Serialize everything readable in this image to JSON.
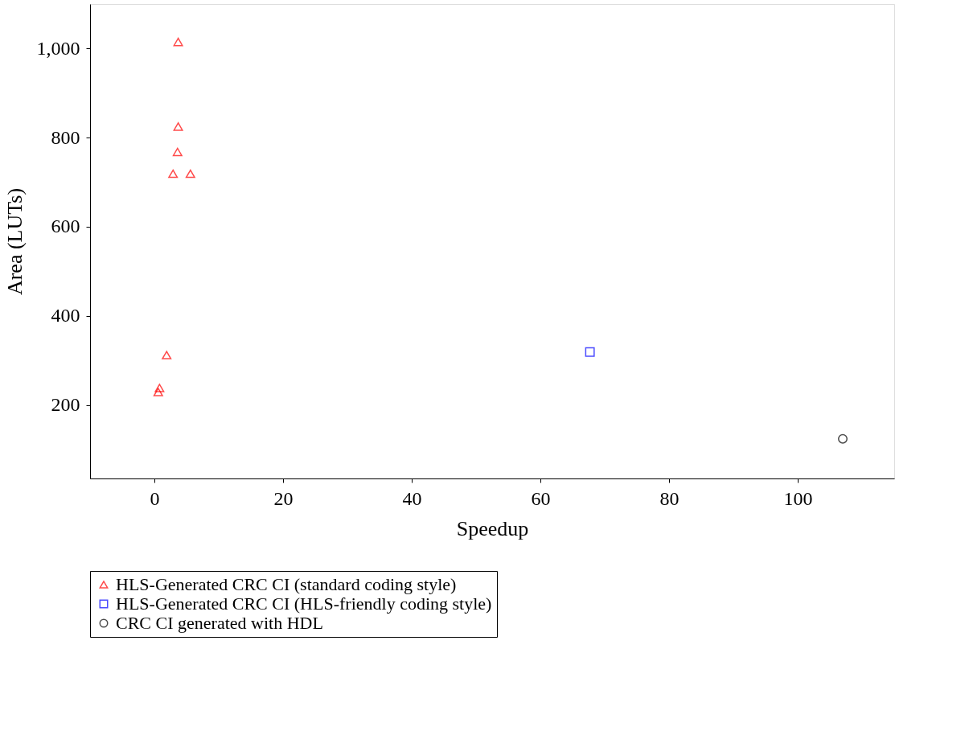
{
  "chart_data": {
    "type": "scatter",
    "xlabel": "Speedup",
    "ylabel": "Area (LUTs)",
    "xlim": [
      -10,
      115
    ],
    "xticks": [
      0,
      20,
      40,
      60,
      80,
      100
    ],
    "ylim": [
      35,
      1100
    ],
    "yticks": [
      {
        "value": 200,
        "label": "200"
      },
      {
        "value": 400,
        "label": "400"
      },
      {
        "value": 600,
        "label": "600"
      },
      {
        "value": 800,
        "label": "800"
      },
      {
        "value": 1000,
        "label": "1,000"
      }
    ],
    "grid": false,
    "legend": "bottom",
    "series": [
      {
        "name": "HLS-Generated CRC CI (standard coding style)",
        "color": "#ff0000",
        "marker": "triangle",
        "x": [
          3.7,
          3.7,
          3.6,
          2.9,
          5.6,
          1.9,
          0.8,
          0.6
        ],
        "values": [
          1015,
          825,
          768,
          719,
          719,
          312,
          238,
          229
        ]
      },
      {
        "name": "HLS-Generated CRC CI (HLS-friendly coding style)",
        "color": "#0000ff",
        "marker": "square",
        "x": [
          67.7
        ],
        "values": [
          319
        ]
      },
      {
        "name": "CRC CI generated with HDL",
        "color": "#000000",
        "marker": "circle",
        "x": [
          107
        ],
        "values": [
          124
        ]
      }
    ]
  }
}
